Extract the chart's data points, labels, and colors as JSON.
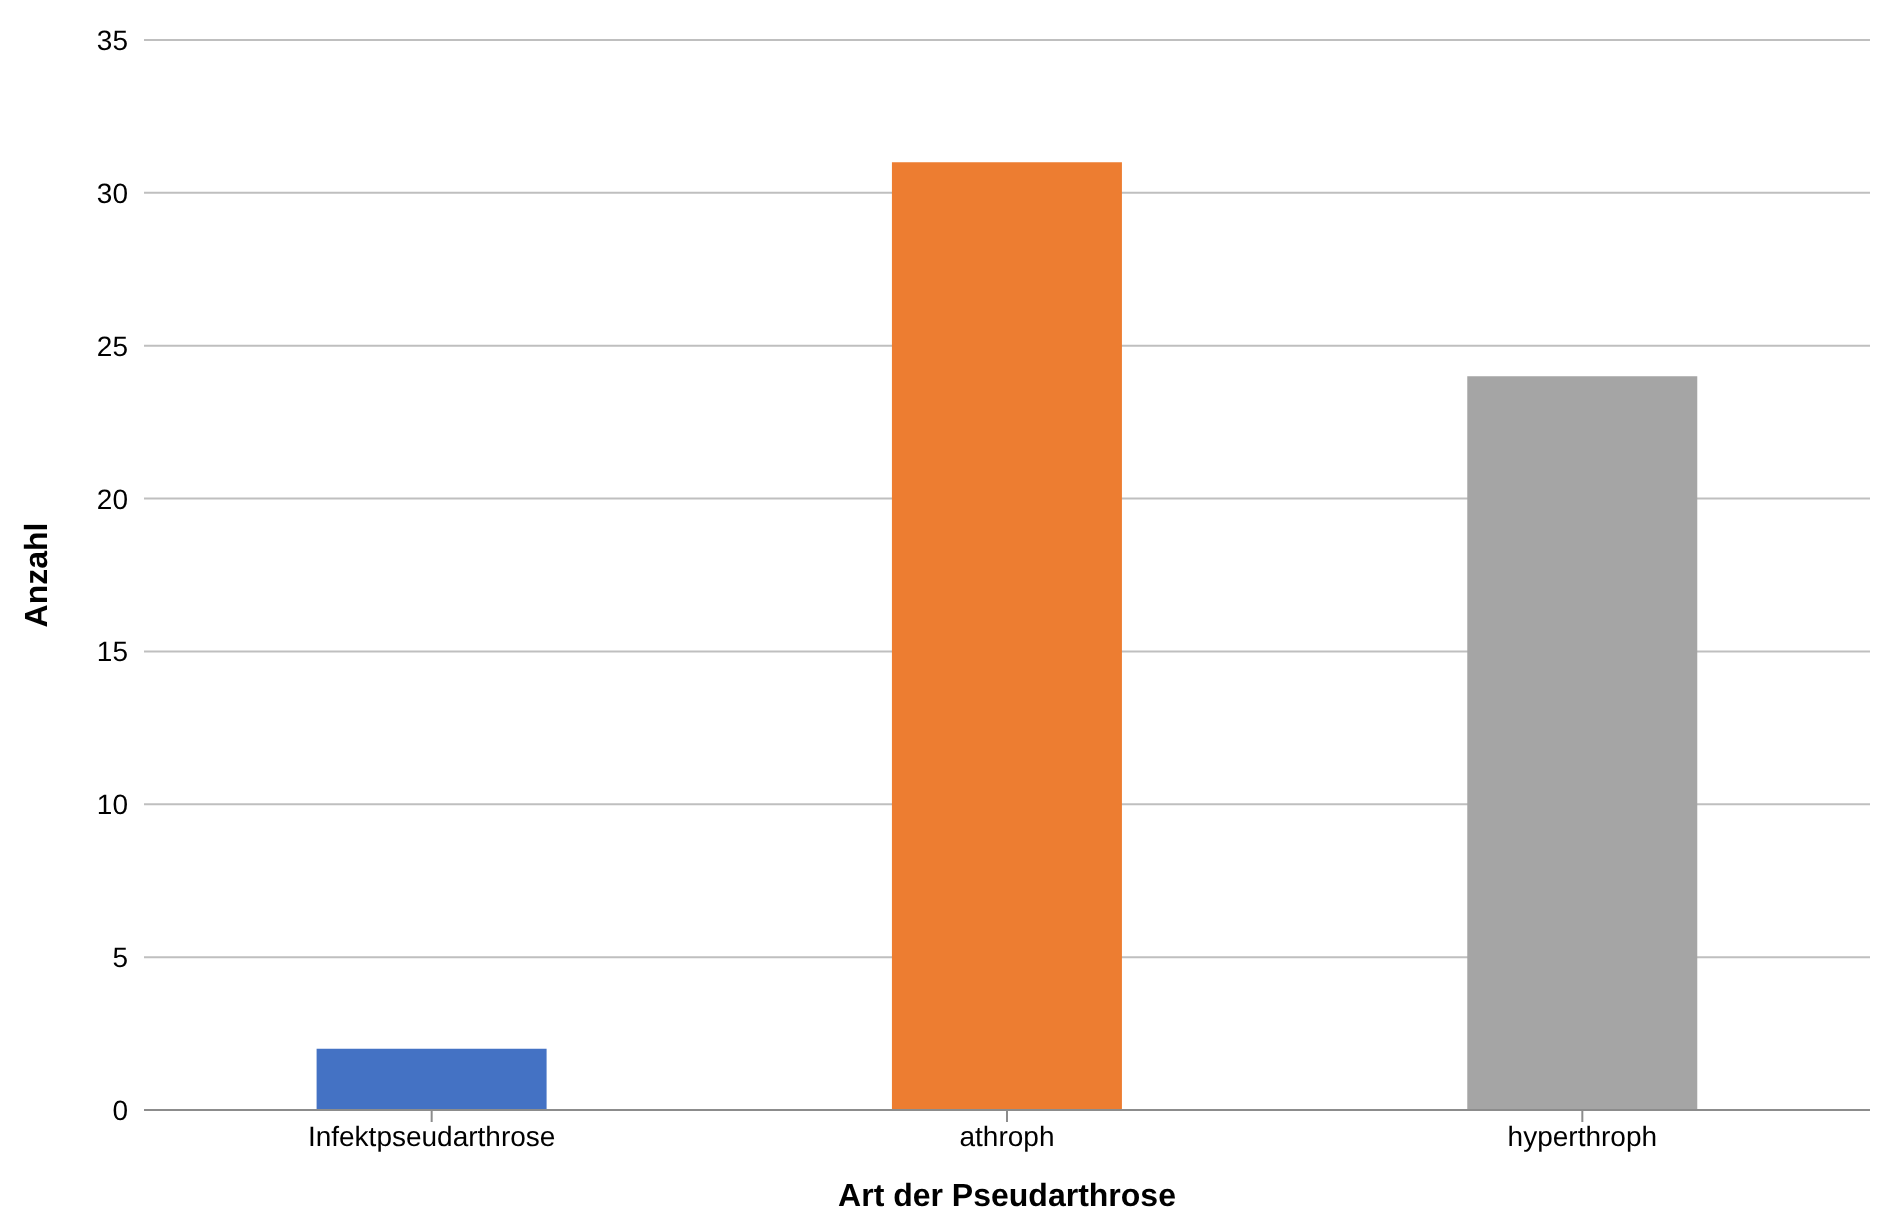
{
  "chart_data": {
    "type": "bar",
    "xlabel": "Art der Pseudarthrose",
    "ylabel": "Anzahl",
    "categories": [
      "Infektpseudarthrose",
      "athroph",
      "hyperthroph"
    ],
    "values": [
      2,
      31,
      24
    ],
    "colors": [
      "#4472c4",
      "#ed7d31",
      "#a5a5a5"
    ],
    "ylim": [
      0,
      35
    ],
    "yticks": [
      0,
      5,
      10,
      15,
      20,
      25,
      30,
      35
    ],
    "grid": "y"
  }
}
